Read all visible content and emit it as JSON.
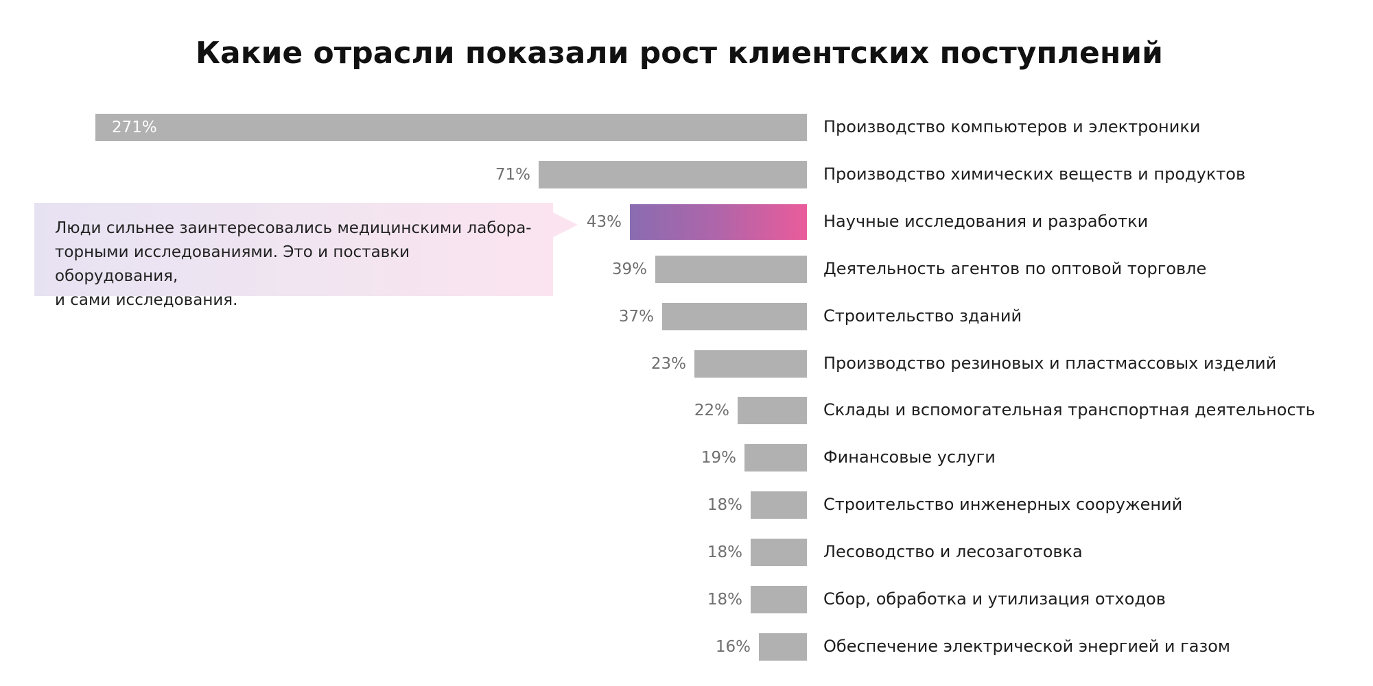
{
  "chart_data": {
    "type": "bar",
    "orientation": "horizontal",
    "title": "Какие отрасли показали рост клиентских поступлений",
    "categories": [
      "Производство компьютеров и электроники",
      "Производство химических веществ и продуктов",
      "Научные исследования и разработки",
      "Деятельность агентов по оптовой торговле",
      "Строительство зданий",
      "Производство резиновых и пластмассовых изделий",
      "Склады и вспомогательная транспортная деятельность",
      "Финансовые услуги",
      "Строительство инженерных сооружений",
      "Лесоводство и лесозаготовка",
      "Сбор, обработка и утилизация отходов",
      "Обеспечение электрической энергией и газом"
    ],
    "values": [
      271,
      71,
      43,
      39,
      37,
      23,
      22,
      19,
      18,
      18,
      18,
      16
    ],
    "value_labels": [
      "271%",
      "71%",
      "43%",
      "39%",
      "37%",
      "23%",
      "22%",
      "19%",
      "18%",
      "18%",
      "18%",
      "16%"
    ],
    "highlight_index": 2,
    "bar_direction": "bars extend leftward from category labels",
    "annotation": {
      "target": "Научные исследования и разработки",
      "lines": [
        "Люди сильнее заинтересовались медицинскими лабора-",
        "торными исследованиями. Это и поставки оборудования,",
        "и сами исследования."
      ]
    },
    "colors": {
      "bar": "#b1b1b1",
      "highlight_start": "#8a6cb1",
      "highlight_end": "#ea5c9b",
      "callout_background": "#f3e4f1"
    },
    "grid": false,
    "legend": "none"
  }
}
